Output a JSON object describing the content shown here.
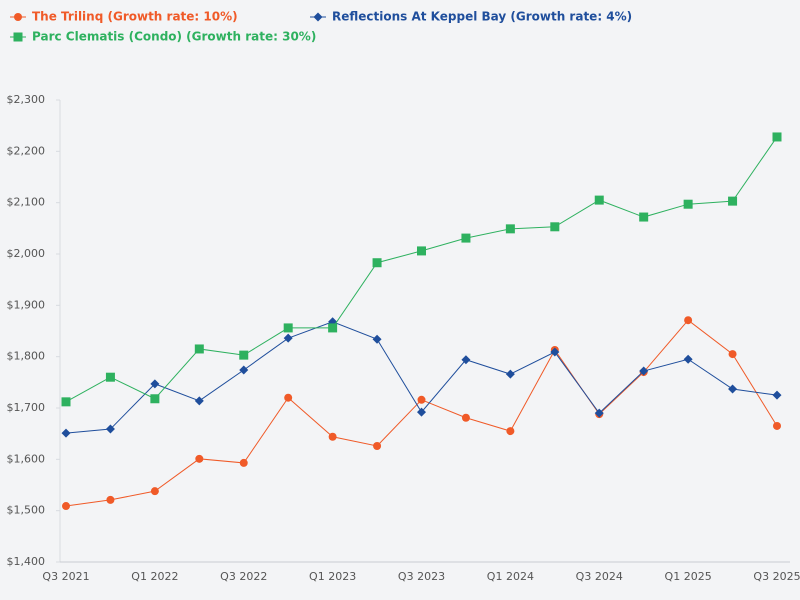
{
  "chart_data": {
    "type": "line",
    "categories": [
      "Q3 2021",
      null,
      "Q1 2022",
      null,
      "Q3 2022",
      null,
      "Q1 2023",
      null,
      "Q3 2023",
      null,
      "Q1 2024",
      null,
      "Q3 2024",
      null,
      "Q1 2025",
      null,
      "Q3 2025"
    ],
    "series": [
      {
        "name": "The Trilinq (Growth rate: 10%)",
        "color": "#f05a28",
        "marker": "circle",
        "values": [
          1509,
          1521,
          1538,
          1601,
          1593,
          1720,
          1644,
          1626,
          1716,
          1681,
          1655,
          1813,
          1688,
          1770,
          1871,
          1805,
          1665
        ]
      },
      {
        "name": "Reflections At Keppel Bay (Growth rate: 4%)",
        "color": "#1f4e9c",
        "marker": "diamond",
        "values": [
          1651,
          1659,
          1747,
          1714,
          1774,
          1836,
          1868,
          1834,
          1692,
          1794,
          1766,
          1809,
          1690,
          1772,
          1795,
          1737,
          1725
        ]
      },
      {
        "name": "Parc Clematis (Condo) (Growth rate: 30%)",
        "color": "#2eb15f",
        "marker": "square",
        "values": [
          1712,
          1760,
          1718,
          1815,
          1803,
          1856,
          1856,
          1983,
          2006,
          2031,
          2049,
          2053,
          2105,
          2072,
          2097,
          2103,
          2228
        ]
      }
    ],
    "ylim": [
      1400,
      2300
    ],
    "yticks": [
      {
        "value": 1400,
        "label": "$1,400"
      },
      {
        "value": 1500,
        "label": "$1,500"
      },
      {
        "value": 1600,
        "label": "$1,600"
      },
      {
        "value": 1700,
        "label": "$1,700"
      },
      {
        "value": 1800,
        "label": "$1,800"
      },
      {
        "value": 1900,
        "label": "$1,900"
      },
      {
        "value": 2000,
        "label": "$2,000"
      },
      {
        "value": 2100,
        "label": "$2,100"
      },
      {
        "value": 2200,
        "label": "$2,200"
      },
      {
        "value": 2300,
        "label": "$2,300"
      }
    ],
    "grid": false,
    "legend": "top-left"
  }
}
